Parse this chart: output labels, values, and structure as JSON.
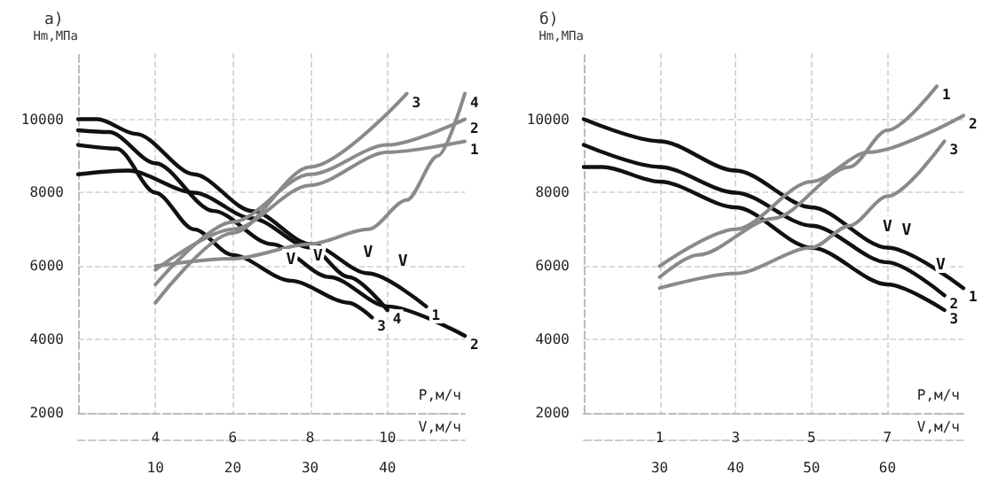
{
  "chart_data": [
    {
      "type": "line",
      "title": "а)",
      "ylabel": "Нm,МПа",
      "xlabel": "P,м/ч",
      "x2label": "V,м/ч",
      "xlim": [
        2,
        12
      ],
      "xticks": [
        4,
        6,
        8,
        10
      ],
      "x2lim": [
        0,
        50
      ],
      "x2ticks": [
        10,
        20,
        30,
        40
      ],
      "ylim": [
        2000,
        11800
      ],
      "yticks": [
        2000,
        4000,
        6000,
        8000,
        10000
      ],
      "grid": true,
      "marker": "none",
      "series": [
        {
          "name": "1",
          "color": "#111111",
          "x": [
            2,
            2.5,
            3.5,
            5,
            6.5,
            8,
            9.5,
            11
          ],
          "values": [
            10000,
            10000,
            9600,
            8500,
            7500,
            6600,
            5800,
            4900
          ]
        },
        {
          "name": "2",
          "color": "#111111",
          "x": [
            2,
            2.8,
            4,
            5.5,
            7,
            8.5,
            10,
            12
          ],
          "values": [
            9700,
            9650,
            8800,
            7500,
            6600,
            5700,
            4900,
            4100
          ]
        },
        {
          "name": "3",
          "color": "#111111",
          "x": [
            2,
            3,
            4,
            5,
            6,
            7.5,
            9,
            9.6
          ],
          "values": [
            9300,
            9200,
            8000,
            7000,
            6300,
            5600,
            5000,
            4600
          ]
        },
        {
          "name": "4",
          "color": "#111111",
          "x": [
            2,
            3.3,
            5,
            6.5,
            8,
            9,
            10
          ],
          "values": [
            8500,
            8600,
            8000,
            7300,
            6500,
            5700,
            4800
          ]
        },
        {
          "name": "3",
          "color": "#8a8a8a",
          "x": [
            4,
            6,
            8,
            10.5
          ],
          "values": [
            5000,
            6900,
            8700,
            10700
          ]
        },
        {
          "name": "2",
          "color": "#8a8a8a",
          "x": [
            4,
            6,
            8,
            10,
            12
          ],
          "values": [
            5500,
            7200,
            8500,
            9300,
            10000
          ]
        },
        {
          "name": "1",
          "color": "#8a8a8a",
          "x": [
            4,
            6,
            8,
            10,
            12
          ],
          "values": [
            5900,
            7000,
            8200,
            9100,
            9400
          ]
        },
        {
          "name": "4",
          "color": "#8a8a8a",
          "x": [
            4,
            6,
            8,
            9.5,
            10.5,
            11.3,
            12
          ],
          "values": [
            6000,
            6200,
            6600,
            7000,
            7800,
            9000,
            10700
          ]
        }
      ],
      "annotations": [
        {
          "text": "V",
          "x": 8.2,
          "y": 5700
        },
        {
          "text": "V",
          "x": 9.5,
          "y": 5800
        },
        {
          "text": "V",
          "x": 10.4,
          "y": 5550
        },
        {
          "text": "V",
          "x": 7.5,
          "y": 5600
        }
      ]
    },
    {
      "type": "line",
      "title": "б)",
      "ylabel": "Нm,МПа",
      "xlabel": "P,м/ч",
      "x2label": "V,м/ч",
      "xlim": [
        -1,
        9
      ],
      "xticks": [
        1,
        3,
        5,
        7
      ],
      "x2lim": [
        20,
        70
      ],
      "x2ticks": [
        30,
        40,
        50,
        60
      ],
      "ylim": [
        2000,
        11800
      ],
      "yticks": [
        2000,
        4000,
        6000,
        8000,
        10000
      ],
      "grid": true,
      "marker": "none",
      "series": [
        {
          "name": "1",
          "color": "#111111",
          "x": [
            -1,
            1,
            3,
            5,
            7,
            9
          ],
          "values": [
            10000,
            9400,
            8600,
            7600,
            6500,
            5400
          ]
        },
        {
          "name": "2",
          "color": "#111111",
          "x": [
            -1,
            1,
            3,
            5,
            7,
            8.5
          ],
          "values": [
            9300,
            8700,
            8000,
            7100,
            6100,
            5200
          ]
        },
        {
          "name": "3",
          "color": "#111111",
          "x": [
            -1,
            -0.5,
            1,
            3,
            5,
            7,
            8.5
          ],
          "values": [
            8700,
            8700,
            8300,
            7600,
            6500,
            5500,
            4800
          ]
        },
        {
          "name": "1",
          "color": "#8a8a8a",
          "x": [
            1,
            2,
            4,
            6,
            7,
            8.3
          ],
          "values": [
            5700,
            6300,
            7300,
            8700,
            9700,
            10900
          ]
        },
        {
          "name": "2",
          "color": "#8a8a8a",
          "x": [
            1,
            3,
            5,
            6.5,
            9
          ],
          "values": [
            6000,
            7000,
            8300,
            9100,
            10100
          ]
        },
        {
          "name": "3",
          "color": "#8a8a8a",
          "x": [
            1,
            3,
            5,
            6,
            7,
            8.5
          ],
          "values": [
            5400,
            5800,
            6500,
            7100,
            7900,
            9400
          ]
        }
      ],
      "annotations": [
        {
          "text": "V",
          "x": 7.5,
          "y": 6400
        },
        {
          "text": "V",
          "x": 7,
          "y": 6500
        },
        {
          "text": "V",
          "x": 8.4,
          "y": 5450
        }
      ]
    }
  ]
}
